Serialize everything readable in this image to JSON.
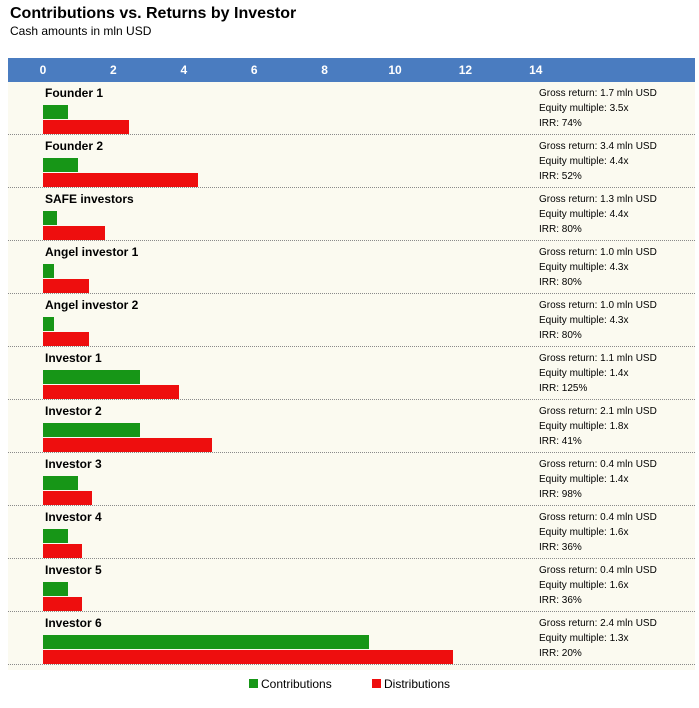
{
  "chart_data": {
    "type": "bar",
    "orientation": "horizontal",
    "title": "Contributions vs. Returns by Investor",
    "subtitle": "Cash amounts in mln USD",
    "xlim": [
      0,
      14
    ],
    "x_ticks": [
      "0",
      "2",
      "4",
      "6",
      "8",
      "10",
      "12",
      "14"
    ],
    "grid": false,
    "legend_position": "bottom",
    "categories": [
      "Founder 1",
      "Founder 2",
      "SAFE investors",
      "Angel investor 1",
      "Angel investor 2",
      "Investor 1",
      "Investor 2",
      "Investor 3",
      "Investor 4",
      "Investor 5",
      "Investor 6"
    ],
    "series": [
      {
        "name": "Contributions",
        "color": "#179617",
        "values": [
          0.7,
          1.0,
          0.4,
          0.3,
          0.3,
          2.75,
          2.75,
          1.0,
          0.7,
          0.7,
          9.25
        ]
      },
      {
        "name": "Distributions",
        "color": "#ee0e0e",
        "values": [
          2.45,
          4.4,
          1.75,
          1.3,
          1.3,
          3.85,
          4.8,
          1.4,
          1.1,
          1.1,
          11.65
        ]
      }
    ],
    "annotations": [
      {
        "gross": "Gross return: 1.7 mln USD",
        "multiple": "Equity multiple: 3.5x",
        "irr": "IRR: 74%"
      },
      {
        "gross": "Gross return: 3.4 mln USD",
        "multiple": "Equity multiple: 4.4x",
        "irr": "IRR: 52%"
      },
      {
        "gross": "Gross return: 1.3 mln USD",
        "multiple": "Equity multiple: 4.4x",
        "irr": "IRR: 80%"
      },
      {
        "gross": "Gross return: 1.0 mln USD",
        "multiple": "Equity multiple: 4.3x",
        "irr": "IRR: 80%"
      },
      {
        "gross": "Gross return: 1.0 mln USD",
        "multiple": "Equity multiple: 4.3x",
        "irr": "IRR: 80%"
      },
      {
        "gross": "Gross return: 1.1 mln USD",
        "multiple": "Equity multiple: 1.4x",
        "irr": "IRR: 125%"
      },
      {
        "gross": "Gross return: 2.1 mln USD",
        "multiple": "Equity multiple: 1.8x",
        "irr": "IRR: 41%"
      },
      {
        "gross": "Gross return: 0.4 mln USD",
        "multiple": "Equity multiple: 1.4x",
        "irr": "IRR: 98%"
      },
      {
        "gross": "Gross return: 0.4 mln USD",
        "multiple": "Equity multiple: 1.6x",
        "irr": "IRR: 36%"
      },
      {
        "gross": "Gross return: 0.4 mln USD",
        "multiple": "Equity multiple: 1.6x",
        "irr": "IRR: 36%"
      },
      {
        "gross": "Gross return: 2.4 mln USD",
        "multiple": "Equity multiple: 1.3x",
        "irr": "IRR: 20%"
      }
    ]
  },
  "colors": {
    "axis_band": "#4a7cc0",
    "plot_background": "#fbfaf0",
    "contributions": "#179617",
    "distributions": "#ee0e0e"
  }
}
